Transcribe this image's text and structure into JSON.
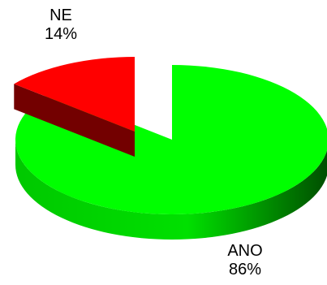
{
  "chart_data": {
    "type": "pie",
    "style": "3d-exploded",
    "slices": [
      {
        "label": "ANO",
        "value": 86,
        "value_label": "86%",
        "color": "#00ff00"
      },
      {
        "label": "NE",
        "value": 14,
        "value_label": "14%",
        "color": "#ff0000"
      }
    ]
  }
}
